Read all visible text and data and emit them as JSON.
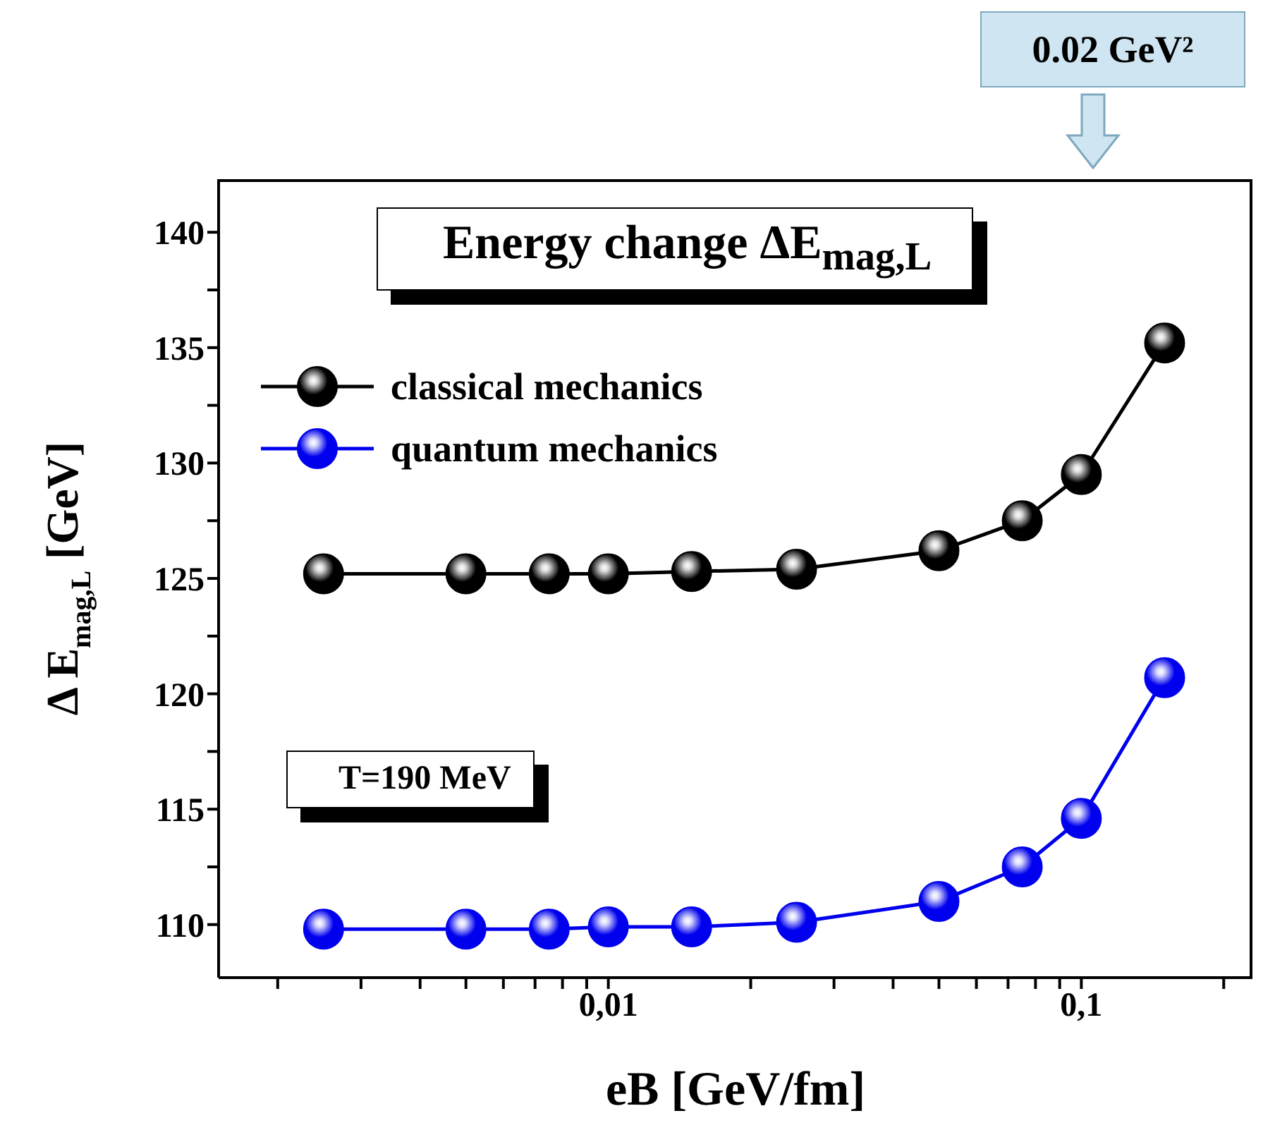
{
  "chart_data": {
    "type": "line",
    "title": "Energy change ΔE$_{mag,L}$",
    "xlabel": "eB [GeV/fm]",
    "ylabel": "Δ E$_{mag,L}$ [GeV]",
    "log": "x",
    "marker": "circle",
    "legend": "top left",
    "x": [
      0.0025,
      0.005,
      0.0075,
      0.01,
      0.015,
      0.025,
      0.05,
      0.075,
      0.1,
      0.15
    ],
    "series": [
      {
        "name": "classical mechanics",
        "color": "#000000",
        "values": [
          125.2,
          125.2,
          125.2,
          125.2,
          125.3,
          125.4,
          126.2,
          127.5,
          129.5,
          135.2
        ]
      },
      {
        "name": "quantum mechanics",
        "color": "#0000ee",
        "values": [
          109.8,
          109.8,
          109.8,
          109.9,
          109.9,
          110.1,
          111.0,
          112.5,
          114.6,
          120.7
        ]
      }
    ],
    "xlim": [
      0.0015,
      0.23
    ],
    "xticks": [
      {
        "value": 0.002,
        "label": null
      },
      {
        "value": 0.003,
        "label": null
      },
      {
        "value": 0.004,
        "label": null
      },
      {
        "value": 0.005,
        "label": null
      },
      {
        "value": 0.006,
        "label": null
      },
      {
        "value": 0.007,
        "label": null
      },
      {
        "value": 0.008,
        "label": null
      },
      {
        "value": 0.009,
        "label": null
      },
      {
        "value": 0.01,
        "label": "0,01"
      },
      {
        "value": 0.02,
        "label": null
      },
      {
        "value": 0.03,
        "label": null
      },
      {
        "value": 0.04,
        "label": null
      },
      {
        "value": 0.05,
        "label": null
      },
      {
        "value": 0.06,
        "label": null
      },
      {
        "value": 0.07,
        "label": null
      },
      {
        "value": 0.08,
        "label": null
      },
      {
        "value": 0.09,
        "label": null
      },
      {
        "value": 0.1,
        "label": "0,1"
      },
      {
        "value": 0.2,
        "label": null
      }
    ],
    "ylim": [
      107.7,
      142.3
    ],
    "yticks": [
      {
        "value": 110,
        "label": "110"
      },
      {
        "value": 112.5,
        "label": null
      },
      {
        "value": 115,
        "label": "115"
      },
      {
        "value": 117.5,
        "label": null
      },
      {
        "value": 120,
        "label": "120"
      },
      {
        "value": 122.5,
        "label": null
      },
      {
        "value": 125,
        "label": "125"
      },
      {
        "value": 127.5,
        "label": null
      },
      {
        "value": 130,
        "label": "130"
      },
      {
        "value": 132.5,
        "label": null
      },
      {
        "value": 135,
        "label": "135"
      },
      {
        "value": 137.5,
        "label": null
      },
      {
        "value": 140,
        "label": "140"
      }
    ],
    "annotations": [
      "T=190 MeV",
      "0.02 GeV²"
    ]
  }
}
